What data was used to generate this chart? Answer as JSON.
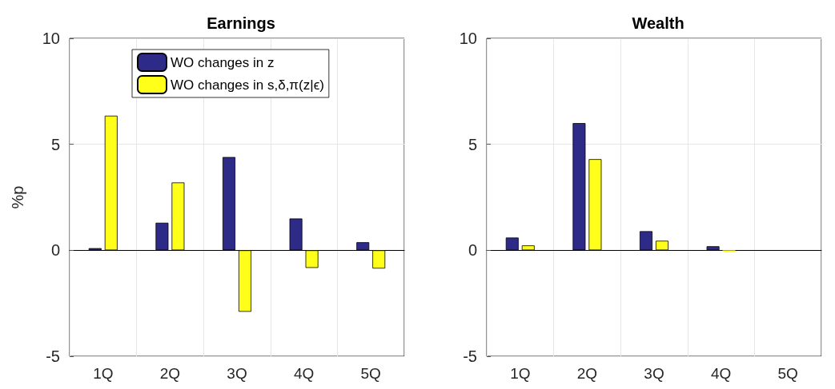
{
  "chart_data": [
    {
      "type": "bar",
      "title": "Earnings",
      "ylabel": "%p",
      "categories": [
        "1Q",
        "2Q",
        "3Q",
        "4Q",
        "5Q"
      ],
      "series": [
        {
          "name": "WO changes in z",
          "color": "#2e2a87",
          "values": [
            0.1,
            1.3,
            4.4,
            1.5,
            0.38
          ]
        },
        {
          "name": "WO changes in s,δ,π(z|ϵ)",
          "color": "#ffff19",
          "values": [
            6.35,
            3.2,
            -2.9,
            -0.83,
            -0.86
          ]
        }
      ],
      "ylim": [
        -5,
        10
      ],
      "yticks": [
        -5,
        0,
        5,
        10
      ],
      "grid": true,
      "legend": "top"
    },
    {
      "type": "bar",
      "title": "Wealth",
      "categories": [
        "1Q",
        "2Q",
        "3Q",
        "4Q",
        "5Q"
      ],
      "series": [
        {
          "color": "#2e2a87",
          "values": [
            0.6,
            6.0,
            0.9,
            0.19,
            null
          ]
        },
        {
          "color": "#ffff19",
          "values": [
            0.23,
            4.3,
            0.45,
            -0.07,
            null
          ]
        }
      ],
      "ylim": [
        -5,
        10
      ],
      "yticks": [
        -5,
        0,
        5,
        10
      ],
      "grid": true
    }
  ]
}
